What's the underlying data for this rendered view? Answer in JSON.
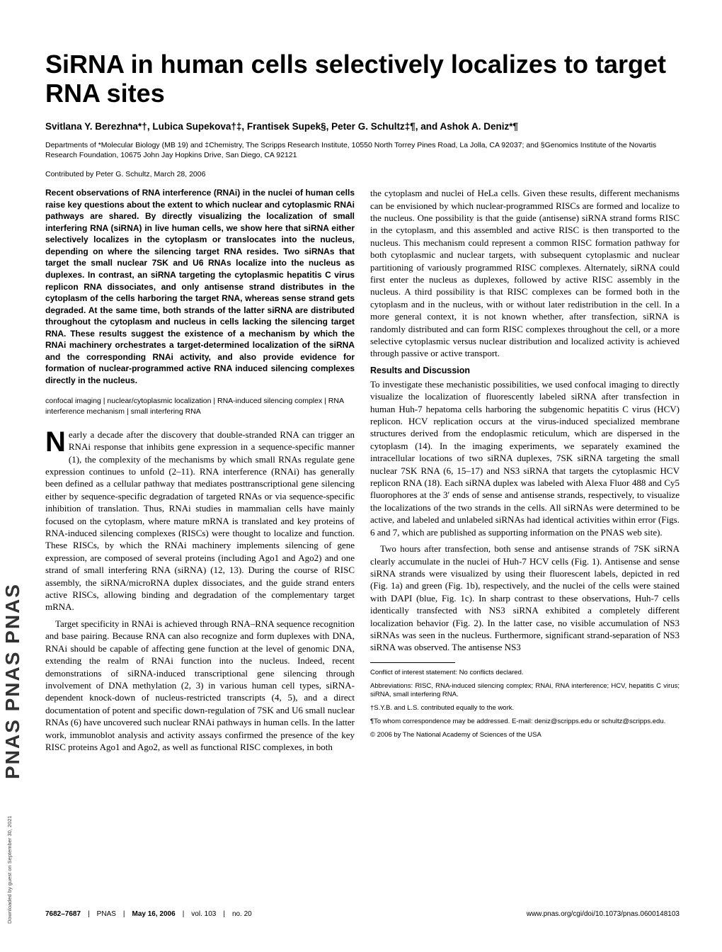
{
  "journal_sidebar": "PNAS   PNAS   PNAS",
  "title": "SiRNA in human cells selectively localizes to target RNA sites",
  "authors": "Svitlana Y. Berezhna*†, Lubica Supekova†‡, Frantisek Supek§, Peter G. Schultz‡¶, and Ashok A. Deniz*¶",
  "affiliations": "Departments of *Molecular Biology (MB 19) and ‡Chemistry, The Scripps Research Institute, 10550 North Torrey Pines Road, La Jolla, CA 92037; and §Genomics Institute of the Novartis Research Foundation, 10675 John Jay Hopkins Drive, San Diego, CA 92121",
  "contributed": "Contributed by Peter G. Schultz, March 28, 2006",
  "abstract": "Recent observations of RNA interference (RNAi) in the nuclei of human cells raise key questions about the extent to which nuclear and cytoplasmic RNAi pathways are shared. By directly visualizing the localization of small interfering RNA (siRNA) in live human cells, we show here that siRNA either selectively localizes in the cytoplasm or translocates into the nucleus, depending on where the silencing target RNA resides. Two siRNAs that target the small nuclear 7SK and U6 RNAs localize into the nucleus as duplexes. In contrast, an siRNA targeting the cytoplasmic hepatitis C virus replicon RNA dissociates, and only antisense strand distributes in the cytoplasm of the cells harboring the target RNA, whereas sense strand gets degraded. At the same time, both strands of the latter siRNA are distributed throughout the cytoplasm and nucleus in cells lacking the silencing target RNA. These results suggest the existence of a mechanism by which the RNAi machinery orchestrates a target-determined localization of the siRNA and the corresponding RNAi activity, and also provide evidence for formation of nuclear-programmed active RNA induced silencing complexes directly in the nucleus.",
  "keywords": "confocal imaging | nuclear/cytoplasmic localization | RNA-induced silencing complex | RNA interference mechanism | small interfering RNA",
  "dropcap_letter": "N",
  "left_paras": [
    "early a decade after the discovery that double-stranded RNA can trigger an RNAi response that inhibits gene expression in a sequence-specific manner (1), the complexity of the mechanisms by which small RNAs regulate gene expression continues to unfold (2–11). RNA interference (RNAi) has generally been defined as a cellular pathway that mediates posttranscriptional gene silencing either by sequence-specific degradation of targeted RNAs or via sequence-specific inhibition of translation. Thus, RNAi studies in mammalian cells have mainly focused on the cytoplasm, where mature mRNA is translated and key proteins of RNA-induced silencing complexes (RISCs) were thought to localize and function. These RISCs, by which the RNAi machinery implements silencing of gene expression, are composed of several proteins (including Ago1 and Ago2) and one strand of small interfering RNA (siRNA) (12, 13). During the course of RISC assembly, the siRNA/microRNA duplex dissociates, and the guide strand enters active RISCs, allowing binding and degradation of the complementary target mRNA.",
    "Target specificity in RNAi is achieved through RNA–RNA sequence recognition and base pairing. Because RNA can also recognize and form duplexes with DNA, RNAi should be capable of affecting gene function at the level of genomic DNA, extending the realm of RNAi function into the nucleus. Indeed, recent demonstrations of siRNA-induced transcriptional gene silencing through involvement of DNA methylation (2, 3) in various human cell types, siRNA-dependent knock-down of nucleus-restricted transcripts (4, 5), and a direct documentation of potent and specific down-regulation of 7SK and U6 small nuclear RNAs (6) have uncovered such nuclear RNAi pathways in human cells. In the latter work, immunoblot analysis and activity assays confirmed the presence of the key RISC proteins Ago1 and Ago2, as well as functional RISC complexes, in both"
  ],
  "right_paras_top": [
    "the cytoplasm and nuclei of HeLa cells. Given these results, different mechanisms can be envisioned by which nuclear-programmed RISCs are formed and localize to the nucleus. One possibility is that the guide (antisense) siRNA strand forms RISC in the cytoplasm, and this assembled and active RISC is then transported to the nucleus. This mechanism could represent a common RISC formation pathway for both cytoplasmic and nuclear targets, with subsequent cytoplasmic and nuclear partitioning of variously programmed RISC complexes. Alternately, siRNA could first enter the nucleus as duplexes, followed by active RISC assembly in the nucleus. A third possibility is that RISC complexes can be formed both in the cytoplasm and in the nucleus, with or without later redistribution in the cell. In a more general context, it is not known whether, after transfection, siRNA is randomly distributed and can form RISC complexes throughout the cell, or a more selective cytoplasmic versus nuclear distribution and localized activity is achieved through passive or active transport."
  ],
  "section_title": "Results and Discussion",
  "right_paras_results": [
    "To investigate these mechanistic possibilities, we used confocal imaging to directly visualize the localization of fluorescently labeled siRNA after transfection in human Huh-7 hepatoma cells harboring the subgenomic hepatitis C virus (HCV) replicon. HCV replication occurs at the virus-induced specialized membrane structures derived from the endoplasmic reticulum, which are dispersed in the cytoplasm (14). In the imaging experiments, we separately examined the intracellular locations of two siRNA duplexes, 7SK siRNA targeting the small nuclear 7SK RNA (6, 15–17) and NS3 siRNA that targets the cytoplasmic HCV replicon RNA (18). Each siRNA duplex was labeled with Alexa Fluor 488 and Cy5 fluorophores at the 3′ ends of sense and antisense strands, respectively, to visualize the localizations of the two strands in the cells. All siRNAs were determined to be active, and labeled and unlabeled siRNAs had identical activities within error (Figs. 6 and 7, which are published as supporting information on the PNAS web site).",
    "Two hours after transfection, both sense and antisense strands of 7SK siRNA clearly accumulate in the nuclei of Huh-7 HCV cells (Fig. 1). Antisense and sense siRNA strands were visualized by using their fluorescent labels, depicted in red (Fig. 1a) and green (Fig. 1b), respectively, and the nuclei of the cells were stained with DAPI (blue, Fig. 1c). In sharp contrast to these observations, Huh-7 cells identically transfected with NS3 siRNA exhibited a completely different localization behavior (Fig. 2). In the latter case, no visible accumulation of NS3 siRNAs was seen in the nucleus. Furthermore, significant strand-separation of NS3 siRNA was observed. The antisense NS3"
  ],
  "footnotes": {
    "conflict": "Conflict of interest statement: No conflicts declared.",
    "abbrev": "Abbreviations: RISC, RNA-induced silencing complex; RNAi, RNA interference; HCV, hepatitis C virus; siRNA, small interfering RNA.",
    "equal": "†S.Y.B. and L.S. contributed equally to the work.",
    "correspond": "¶To whom correspondence may be addressed. E-mail: deniz@scripps.edu or schultz@scripps.edu.",
    "copyright": "© 2006 by The National Academy of Sciences of the USA"
  },
  "footer": {
    "pages": "7682–7687",
    "journal": "PNAS",
    "date": "May 16, 2006",
    "vol": "vol. 103",
    "no": "no. 20",
    "url": "www.pnas.org/cgi/doi/10.1073/pnas.0600148103"
  },
  "side_credit": "Downloaded by guest on September 30, 2021"
}
